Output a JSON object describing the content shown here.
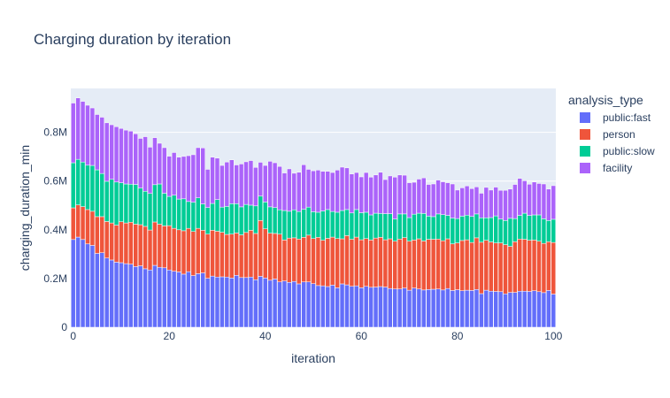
{
  "chart_data": {
    "type": "bar",
    "barmode": "stack",
    "title": "Charging duration by iteration",
    "xlabel": "iteration",
    "ylabel": "charging_duration_min",
    "xlim": [
      -0.5,
      100.5
    ],
    "ylim": [
      0,
      980000
    ],
    "xticks": [
      0,
      20,
      40,
      60,
      80,
      100
    ],
    "xtick_labels": [
      "0",
      "20",
      "40",
      "60",
      "80",
      "100"
    ],
    "yticks": [
      0,
      200000,
      400000,
      600000,
      800000
    ],
    "ytick_labels": [
      "0",
      "0.2M",
      "0.4M",
      "0.6M",
      "0.8M"
    ],
    "grid": true,
    "legend_title": "analysis_type",
    "legend_position": "right",
    "x": [
      0,
      1,
      2,
      3,
      4,
      5,
      6,
      7,
      8,
      9,
      10,
      11,
      12,
      13,
      14,
      15,
      16,
      17,
      18,
      19,
      20,
      21,
      22,
      23,
      24,
      25,
      26,
      27,
      28,
      29,
      30,
      31,
      32,
      33,
      34,
      35,
      36,
      37,
      38,
      39,
      40,
      41,
      42,
      43,
      44,
      45,
      46,
      47,
      48,
      49,
      50,
      51,
      52,
      53,
      54,
      55,
      56,
      57,
      58,
      59,
      60,
      61,
      62,
      63,
      64,
      65,
      66,
      67,
      68,
      69,
      70,
      71,
      72,
      73,
      74,
      75,
      76,
      77,
      78,
      79,
      80,
      81,
      82,
      83,
      84,
      85,
      86,
      87,
      88,
      89,
      90,
      91,
      92,
      93,
      94,
      95,
      96,
      97,
      98,
      99,
      100
    ],
    "series": [
      {
        "name": "public:fast",
        "color": "#636efa",
        "values": [
          360000,
          370000,
          360000,
          342000,
          336000,
          303000,
          306000,
          284000,
          276000,
          267000,
          265000,
          261000,
          259000,
          249000,
          252000,
          240000,
          235000,
          254000,
          246000,
          244000,
          235000,
          230000,
          227000,
          218000,
          228000,
          212000,
          220000,
          223000,
          201000,
          210000,
          206000,
          207000,
          206000,
          202000,
          213000,
          204000,
          204000,
          206000,
          195000,
          209000,
          202000,
          193000,
          198000,
          186000,
          190000,
          184000,
          188000,
          178000,
          186000,
          186000,
          179000,
          171000,
          170000,
          167000,
          173000,
          162000,
          178000,
          174000,
          168000,
          170000,
          162000,
          168000,
          164000,
          165000,
          167000,
          165000,
          159000,
          157000,
          157000,
          161000,
          152000,
          161000,
          157000,
          153000,
          155000,
          156000,
          157000,
          153000,
          159000,
          151000,
          154000,
          150000,
          152000,
          151000,
          155000,
          138000,
          152000,
          148000,
          147000,
          146000,
          137000,
          143000,
          143000,
          148000,
          148000,
          147000,
          150000,
          146000,
          142000,
          151000,
          136000
        ]
      },
      {
        "name": "person",
        "color": "#ef553b",
        "values": [
          130000,
          132000,
          135000,
          141000,
          140000,
          151000,
          148000,
          150000,
          152000,
          152000,
          168000,
          167000,
          172000,
          174000,
          169000,
          174000,
          164000,
          178000,
          177000,
          172000,
          182000,
          176000,
          173000,
          178000,
          178000,
          181000,
          186000,
          175000,
          181000,
          188000,
          188000,
          183000,
          175000,
          180000,
          174000,
          175000,
          185000,
          192000,
          190000,
          229000,
          202000,
          193000,
          187000,
          196000,
          168000,
          182000,
          179000,
          184000,
          183000,
          192000,
          185000,
          198000,
          187000,
          198000,
          197000,
          202000,
          185000,
          202000,
          193000,
          200000,
          197000,
          196000,
          194000,
          201000,
          202000,
          194000,
          204000,
          196000,
          205000,
          207000,
          201000,
          197000,
          206000,
          201000,
          206000,
          205000,
          205000,
          202000,
          204000,
          191000,
          192000,
          206000,
          207000,
          197000,
          212000,
          211000,
          205000,
          202000,
          199000,
          200000,
          202000,
          189000,
          208000,
          214000,
          213000,
          210000,
          208000,
          207000,
          202000,
          200000,
          212000
        ]
      },
      {
        "name": "public:slow",
        "color": "#00cc96",
        "values": [
          185000,
          187000,
          183000,
          182000,
          188000,
          192000,
          177000,
          165000,
          179000,
          177000,
          160000,
          160000,
          156000,
          163000,
          150000,
          144000,
          150000,
          153000,
          165000,
          134000,
          120000,
          136000,
          126000,
          131000,
          110000,
          120000,
          125000,
          108000,
          109000,
          110000,
          130000,
          103000,
          115000,
          125000,
          120000,
          115000,
          115000,
          103000,
          113000,
          100000,
          110000,
          108000,
          106000,
          100000,
          121000,
          110000,
          115000,
          113000,
          115000,
          115000,
          110000,
          103000,
          120000,
          118000,
          105000,
          108000,
          116000,
          107000,
          108000,
          113000,
          111000,
          108000,
          103000,
          102000,
          98000,
          107000,
          103000,
          91000,
          103000,
          97000,
          97000,
          106000,
          105000,
          113000,
          95000,
          93000,
          103000,
          107000,
          96000,
          106000,
          100000,
          100000,
          101000,
          107000,
          98000,
          100000,
          92000,
          100000,
          111000,
          98000,
          99000,
          115000,
          95000,
          97000,
          107000,
          102000,
          103000,
          108000,
          101000,
          87000,
          95000
        ]
      },
      {
        "name": "facility",
        "color": "#ab63fa",
        "values": [
          245000,
          252000,
          249000,
          246000,
          236000,
          227000,
          231000,
          240000,
          224000,
          227000,
          223000,
          221000,
          218000,
          208000,
          204000,
          224000,
          190000,
          193000,
          167000,
          187000,
          165000,
          175000,
          172000,
          174000,
          188000,
          195000,
          206000,
          230000,
          157000,
          190000,
          170000,
          171000,
          182000,
          180000,
          159000,
          176000,
          175000,
          183000,
          158000,
          139000,
          150000,
          187000,
          184000,
          178000,
          154000,
          174000,
          150000,
          161000,
          183000,
          155000,
          168000,
          173000,
          163000,
          157000,
          160000,
          173000,
          178000,
          171000,
          160000,
          152000,
          147000,
          163000,
          155000,
          157000,
          169000,
          140000,
          155000,
          172000,
          160000,
          159000,
          143000,
          131000,
          140000,
          146000,
          130000,
          134000,
          139000,
          135000,
          134000,
          140000,
          117000,
          116000,
          120000,
          114000,
          111000,
          101000,
          125000,
          113000,
          118000,
          118000,
          124000,
          120000,
          140000,
          152000,
          133000,
          128000,
          135000,
          129000,
          143000,
          129000,
          138000
        ]
      }
    ]
  }
}
